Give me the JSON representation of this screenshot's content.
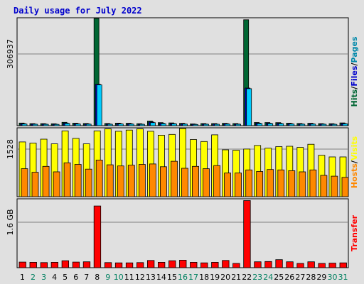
{
  "title": "Daily usage for July 2022",
  "chart_data": [
    {
      "type": "bar",
      "panel": "hits-files-pages",
      "categories": [
        "1",
        "2",
        "3",
        "4",
        "5",
        "6",
        "7",
        "8",
        "9",
        "10",
        "11",
        "12",
        "13",
        "14",
        "15",
        "16",
        "17",
        "18",
        "19",
        "20",
        "21",
        "22",
        "23",
        "24",
        "25",
        "26",
        "27",
        "28",
        "29",
        "30",
        "31"
      ],
      "weekend_days": [
        "2",
        "3",
        "9",
        "10",
        "16",
        "17",
        "23",
        "24",
        "30",
        "31"
      ],
      "y_tick_label": "306937",
      "y_tick_value": 306937,
      "ylim": [
        0,
        336000
      ],
      "right_label": [
        "Hits",
        "/",
        "Files",
        "/",
        "Pages"
      ],
      "right_label_colors": [
        "#006633",
        "#000000",
        "#0000cc",
        "#000000",
        "#0088aa"
      ],
      "grid": true,
      "series": [
        {
          "name": "Hits",
          "color": "#006633",
          "values": [
            8200,
            6500,
            6400,
            6000,
            10500,
            7800,
            6900,
            336000,
            6800,
            8000,
            7500,
            6300,
            14500,
            9500,
            8600,
            7300,
            5600,
            6600,
            6600,
            7400,
            6700,
            332000,
            10000,
            9800,
            9500,
            7800,
            6900,
            7500,
            6500,
            6300,
            8700
          ]
        },
        {
          "name": "Files",
          "color": "#0000cc",
          "values": [
            6400,
            5200,
            5100,
            4700,
            8300,
            6200,
            5500,
            130000,
            5400,
            6400,
            6000,
            5000,
            11500,
            7500,
            6800,
            5800,
            4500,
            5300,
            5300,
            5900,
            5400,
            118000,
            8000,
            7800,
            7500,
            6200,
            5500,
            6000,
            5200,
            5000,
            6900
          ]
        },
        {
          "name": "Pages",
          "color": "#00ccff",
          "values": [
            5200,
            4400,
            4300,
            3900,
            6900,
            5200,
            4600,
            128000,
            4500,
            5400,
            5000,
            4200,
            9600,
            6300,
            5700,
            4900,
            3800,
            4400,
            4400,
            4900,
            4500,
            116000,
            6700,
            6500,
            6300,
            5200,
            4600,
            5000,
            4400,
            4200,
            5800
          ]
        }
      ]
    },
    {
      "type": "bar",
      "panel": "hosts-visits",
      "categories": [
        "1",
        "2",
        "3",
        "4",
        "5",
        "6",
        "7",
        "8",
        "9",
        "10",
        "11",
        "12",
        "13",
        "14",
        "15",
        "16",
        "17",
        "18",
        "19",
        "20",
        "21",
        "22",
        "23",
        "24",
        "25",
        "26",
        "27",
        "28",
        "29",
        "30",
        "31"
      ],
      "y_tick_label": "1528",
      "y_tick_value": 1528,
      "ylim": [
        0,
        1730
      ],
      "right_label": [
        "Hosts",
        "/",
        "Visits"
      ],
      "right_label_colors": [
        "#ff8800",
        "#000000",
        "#ffff00"
      ],
      "grid": true,
      "series": [
        {
          "name": "Visits",
          "color": "#ffff00",
          "values": [
            1390,
            1360,
            1460,
            1340,
            1670,
            1480,
            1340,
            1670,
            1720,
            1660,
            1690,
            1720,
            1660,
            1560,
            1580,
            1730,
            1450,
            1400,
            1570,
            1190,
            1180,
            1210,
            1300,
            1230,
            1270,
            1280,
            1250,
            1330,
            1050,
            1010,
            1010
          ]
        },
        {
          "name": "Hosts",
          "color": "#ff8800",
          "values": [
            710,
            620,
            770,
            630,
            860,
            820,
            700,
            930,
            810,
            780,
            800,
            820,
            830,
            760,
            900,
            720,
            770,
            710,
            790,
            600,
            600,
            680,
            640,
            690,
            680,
            660,
            630,
            680,
            540,
            520,
            490
          ]
        }
      ]
    },
    {
      "type": "bar",
      "panel": "transfer",
      "categories": [
        "1",
        "2",
        "3",
        "4",
        "5",
        "6",
        "7",
        "8",
        "9",
        "10",
        "11",
        "12",
        "13",
        "14",
        "15",
        "16",
        "17",
        "18",
        "19",
        "20",
        "21",
        "22",
        "23",
        "24",
        "25",
        "26",
        "27",
        "28",
        "29",
        "30",
        "31"
      ],
      "y_tick_label": "1.6 GB",
      "y_tick_value": 1.6,
      "unit": "GB",
      "ylim": [
        0,
        2.54
      ],
      "right_label": [
        "Transfer"
      ],
      "right_label_colors": [
        "#ff0000"
      ],
      "grid": true,
      "series": [
        {
          "name": "Transfer",
          "color": "#ff0000",
          "values": [
            0.21,
            0.2,
            0.19,
            0.2,
            0.26,
            0.21,
            0.22,
            2.3,
            0.19,
            0.18,
            0.18,
            0.19,
            0.27,
            0.2,
            0.26,
            0.28,
            0.2,
            0.18,
            0.2,
            0.27,
            0.16,
            2.5,
            0.22,
            0.23,
            0.3,
            0.22,
            0.16,
            0.22,
            0.16,
            0.17,
            0.18
          ]
        }
      ]
    }
  ]
}
